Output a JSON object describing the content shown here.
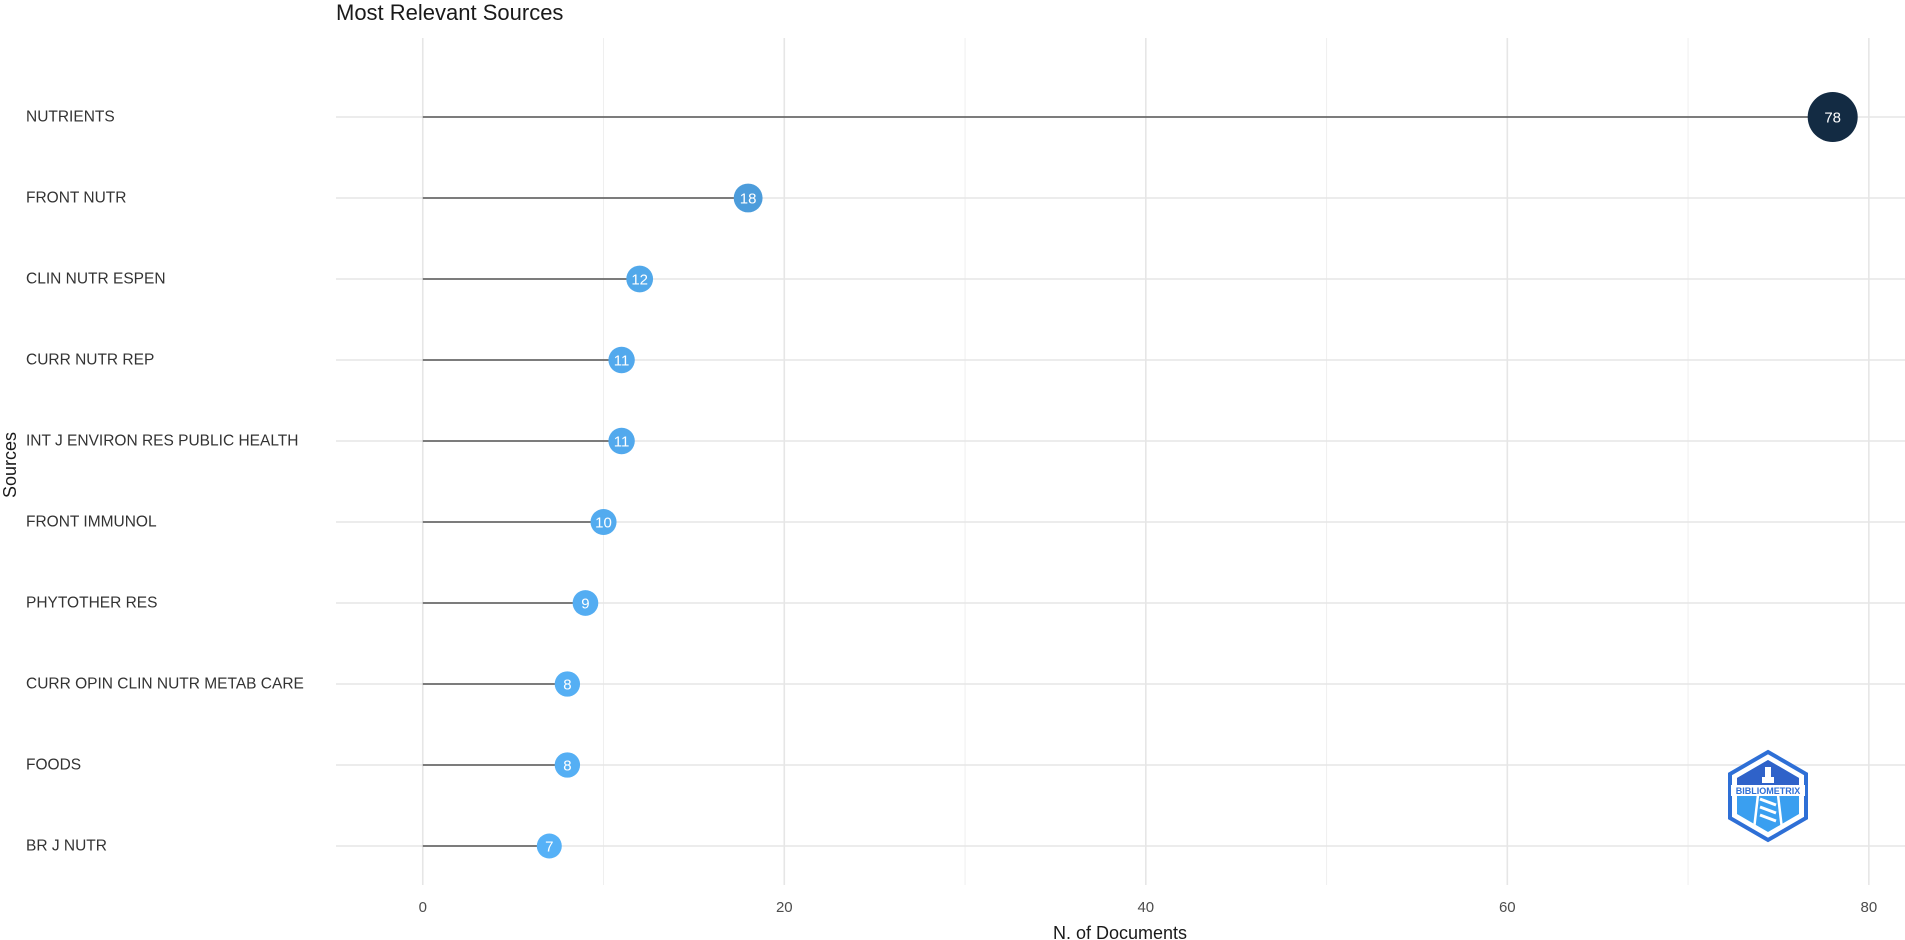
{
  "chart_data": {
    "type": "lollipop",
    "title": "Most Relevant Sources",
    "xlabel": "N. of Documents",
    "ylabel": "Sources",
    "xlim": [
      -4.8,
      82
    ],
    "xticks": [
      0,
      20,
      40,
      60,
      80
    ],
    "grid": true,
    "categories": [
      "NUTRIENTS",
      "FRONT NUTR",
      "CLIN NUTR ESPEN",
      "CURR NUTR REP",
      "INT J ENVIRON RES PUBLIC HEALTH",
      "FRONT IMMUNOL",
      "PHYTOTHER RES",
      "CURR OPIN CLIN NUTR METAB CARE",
      "FOODS",
      "BR J NUTR"
    ],
    "values": [
      78,
      18,
      12,
      11,
      11,
      10,
      9,
      8,
      8,
      7
    ],
    "color_low": "#56b1f7",
    "color_high": "#132b43"
  },
  "logo": {
    "text": "BIBLIOMETRIX",
    "color": "#2a8be0"
  }
}
